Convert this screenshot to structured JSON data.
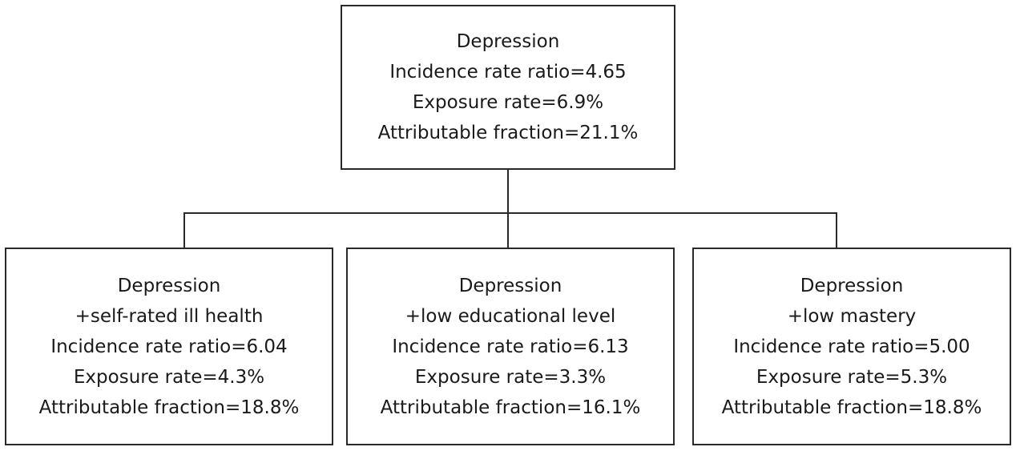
{
  "top": {
    "lines": [
      "Depression",
      "Incidence rate ratio=4.65",
      "Exposure rate=6.9%",
      "Attributable fraction=21.1%"
    ]
  },
  "children": [
    {
      "lines": [
        "Depression",
        "+self-rated ill health",
        "Incidence rate ratio=6.04",
        "Exposure rate=4.3%",
        "Attributable fraction=18.8%"
      ]
    },
    {
      "lines": [
        "Depression",
        "+low educational level",
        "Incidence rate ratio=6.13",
        "Exposure rate=3.3%",
        "Attributable fraction=16.1%"
      ]
    },
    {
      "lines": [
        "Depression",
        "+low mastery",
        "Incidence rate ratio=5.00",
        "Exposure rate=5.3%",
        "Attributable fraction=18.8%"
      ]
    }
  ]
}
